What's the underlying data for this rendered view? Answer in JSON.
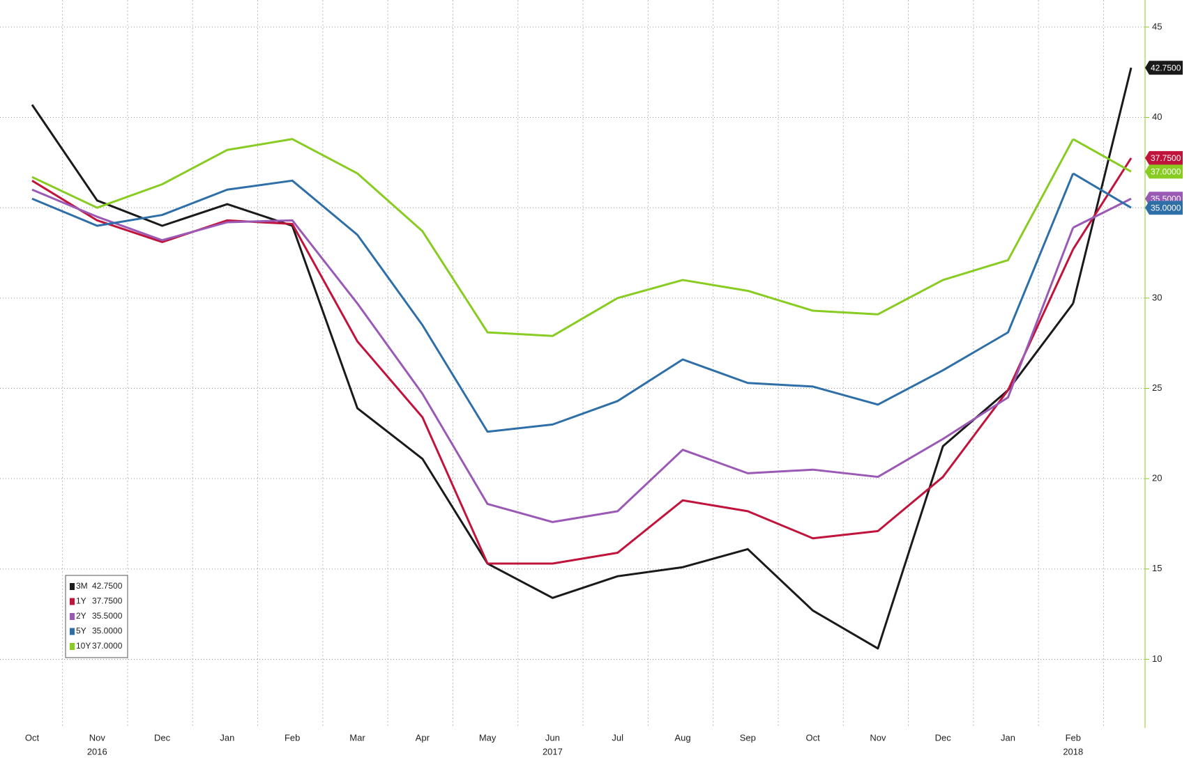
{
  "chart_data": {
    "type": "line",
    "categories": [
      "Oct",
      "Nov",
      "Dec",
      "Jan",
      "Feb",
      "Mar",
      "Apr",
      "May",
      "Jun",
      "Jul",
      "Aug",
      "Sep",
      "Oct",
      "Nov",
      "Dec",
      "Jan",
      "Feb"
    ],
    "years": [
      "2016",
      "2017",
      "2018"
    ],
    "ylim": [
      6.2,
      46.5
    ],
    "yticks": [
      10,
      15,
      20,
      25,
      30,
      35,
      40,
      45
    ],
    "grid": true,
    "legend": "lower-left",
    "series": [
      {
        "name": "3M",
        "color": "#1a1a1a",
        "last": 42.75,
        "last_label": "42.7500",
        "values": [
          40.7,
          35.4,
          34.0,
          35.2,
          34.0,
          23.9,
          21.1,
          15.3,
          13.4,
          14.6,
          15.1,
          16.1,
          12.7,
          10.6,
          21.8,
          24.9,
          29.7
        ]
      },
      {
        "name": "1Y",
        "color": "#c0143c",
        "last": 37.75,
        "last_label": "37.7500",
        "values": [
          36.5,
          34.3,
          33.1,
          34.3,
          34.1,
          27.6,
          23.4,
          15.3,
          15.3,
          15.9,
          18.8,
          18.2,
          16.7,
          17.1,
          20.1,
          24.9,
          32.7
        ]
      },
      {
        "name": "2Y",
        "color": "#9b59b6",
        "last": 35.5,
        "last_label": "35.5000",
        "values": [
          36.0,
          34.5,
          33.2,
          34.2,
          34.3,
          29.7,
          24.7,
          18.6,
          17.6,
          18.2,
          21.6,
          20.3,
          20.5,
          20.1,
          22.2,
          24.5,
          33.9
        ]
      },
      {
        "name": "5Y",
        "color": "#2f6fa8",
        "last": 35.0,
        "last_label": "35.0000",
        "values": [
          35.5,
          34.0,
          34.6,
          36.0,
          36.5,
          33.5,
          28.5,
          22.6,
          23.0,
          24.3,
          26.6,
          25.3,
          25.1,
          24.1,
          26.0,
          28.1,
          36.9
        ]
      },
      {
        "name": "10Y",
        "color": "#88cc22",
        "last": 37.0,
        "last_label": "37.0000",
        "values": [
          36.7,
          35.0,
          36.3,
          38.2,
          38.8,
          36.9,
          33.7,
          28.1,
          27.9,
          30.0,
          31.0,
          30.4,
          29.3,
          29.1,
          31.0,
          32.1,
          38.8
        ]
      }
    ]
  }
}
